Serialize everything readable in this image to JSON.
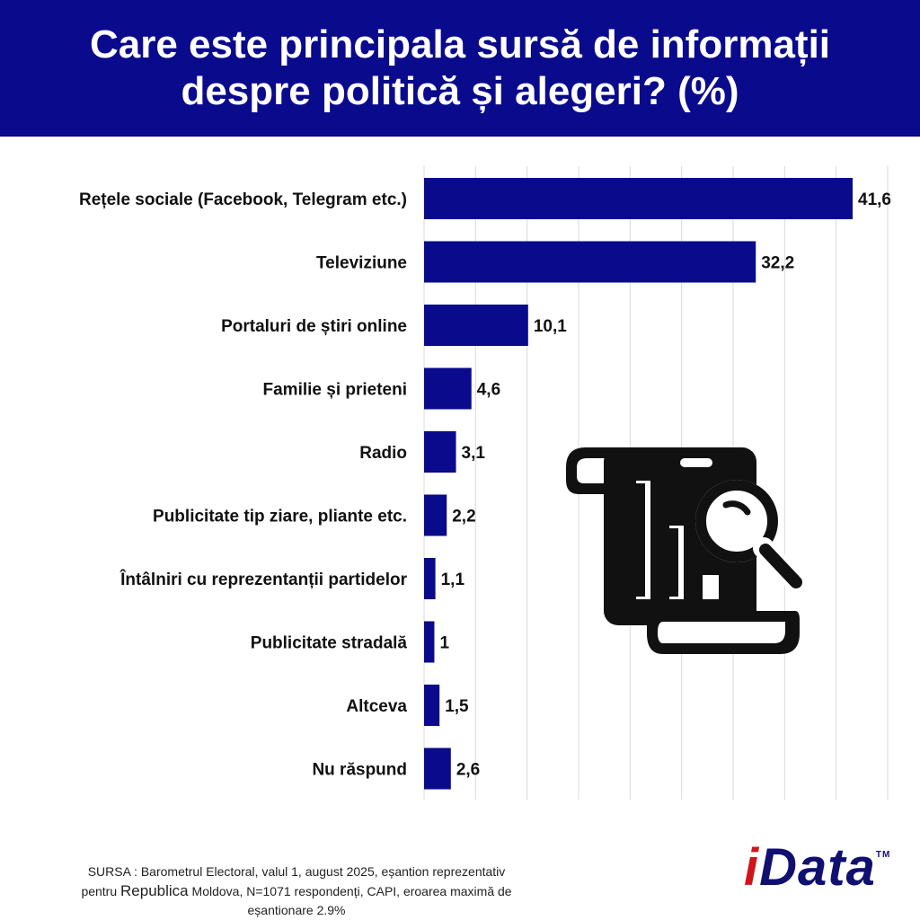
{
  "header": {
    "title_line1": "Care este principala sursă de informații",
    "title_line2": "despre politică și alegeri? (%)"
  },
  "chart_data": {
    "type": "bar",
    "orientation": "horizontal",
    "title": "Care este principala sursă de informații despre politică și alegeri? (%)",
    "categories": [
      "Rețele sociale (Facebook, Telegram etc.)",
      "Televiziune",
      "Portaluri de știri online",
      "Familie și prieteni",
      "Radio",
      "Publicitate tip ziare, pliante etc.",
      "Întâlniri cu reprezentanții partidelor",
      "Publicitate stradală",
      "Altceva",
      "Nu răspund"
    ],
    "values": [
      41.6,
      32.2,
      10.1,
      4.6,
      3.1,
      2.2,
      1.1,
      1,
      1.5,
      2.6
    ],
    "value_labels": [
      "41,6",
      "32,2",
      "10,1",
      "4,6",
      "3,1",
      "2,2",
      "1,1",
      "1",
      "1,5",
      "2,6"
    ],
    "xlim": [
      0,
      45
    ],
    "grid": true,
    "bar_color": "#0a0a8c"
  },
  "source": {
    "line1": "SURSA : Barometrul Electoral, valul 1, august 2025, eșantion reprezentativ",
    "line2_pre": "pentru",
    "line2_big": "Republica",
    "line2_post": "Moldova, N=1071 respondenți, CAPI, eroarea maximă de",
    "line3": "eșantionare 2.9%"
  },
  "logo": {
    "i": "i",
    "rest": "Data",
    "tm": "TM"
  },
  "illustration": {
    "icon": "report-search-icon"
  },
  "colors": {
    "brand": "#0a0a8c",
    "logo_accent": "#d0141c",
    "logo_text": "#101070"
  }
}
